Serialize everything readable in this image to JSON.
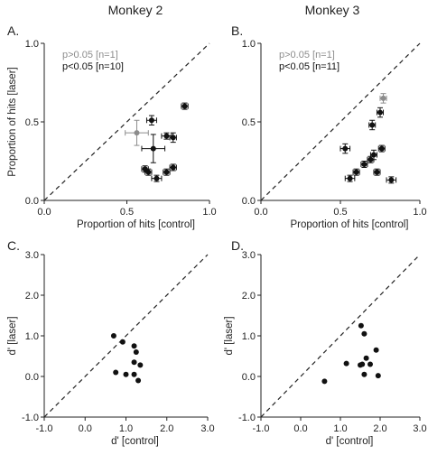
{
  "colors": {
    "black": "#111111",
    "gray": "#8c8c8c"
  },
  "column_titles": [
    "Monkey 2",
    "Monkey 3"
  ],
  "chart_data": [
    {
      "panel_label": "A.",
      "type": "scatter",
      "title": "Monkey 2",
      "xlabel": "Proportion of hits [control]",
      "ylabel": "Proportion of hits [laser]",
      "xlim": [
        0,
        1
      ],
      "ylim": [
        0,
        1
      ],
      "xticks": [
        0,
        0.5,
        1
      ],
      "yticks": [
        0,
        0.5,
        1
      ],
      "xtick_labels": [
        "0.0",
        "0.5",
        "1.0"
      ],
      "ytick_labels": [
        "0.0",
        "0.5",
        "1.0"
      ],
      "unity_line": true,
      "legend": [
        {
          "text": "p>0.05 [n=1]",
          "color": "#8c8c8c"
        },
        {
          "text": "p<0.05 [n=10]",
          "color": "#111111"
        }
      ],
      "series": [
        {
          "color": "#111111",
          "points": [
            {
              "x": 0.85,
              "y": 0.6,
              "xerr": 0.02,
              "yerr": 0.02
            },
            {
              "x": 0.65,
              "y": 0.51,
              "xerr": 0.03,
              "yerr": 0.03
            },
            {
              "x": 0.74,
              "y": 0.41,
              "xerr": 0.03,
              "yerr": 0.02
            },
            {
              "x": 0.78,
              "y": 0.4,
              "xerr": 0.02,
              "yerr": 0.03
            },
            {
              "x": 0.66,
              "y": 0.33,
              "xerr": 0.07,
              "yerr": 0.09
            },
            {
              "x": 0.61,
              "y": 0.2,
              "xerr": 0.02,
              "yerr": 0.02
            },
            {
              "x": 0.63,
              "y": 0.18,
              "xerr": 0.02,
              "yerr": 0.02
            },
            {
              "x": 0.74,
              "y": 0.18,
              "xerr": 0.02,
              "yerr": 0.02
            },
            {
              "x": 0.78,
              "y": 0.21,
              "xerr": 0.02,
              "yerr": 0.02
            },
            {
              "x": 0.68,
              "y": 0.14,
              "xerr": 0.03,
              "yerr": 0.02
            }
          ]
        },
        {
          "color": "#8c8c8c",
          "points": [
            {
              "x": 0.56,
              "y": 0.43,
              "xerr": 0.07,
              "yerr": 0.08
            }
          ]
        }
      ]
    },
    {
      "panel_label": "B.",
      "type": "scatter",
      "title": "Monkey 3",
      "xlabel": "Proportion of hits [control]",
      "ylabel": "",
      "xlim": [
        0,
        1
      ],
      "ylim": [
        0,
        1
      ],
      "xticks": [
        0,
        0.5,
        1
      ],
      "yticks": [
        0,
        0.5,
        1
      ],
      "xtick_labels": [
        "0.0",
        "0.5",
        "1.0"
      ],
      "ytick_labels": [
        "0.0",
        "0.5",
        "1.0"
      ],
      "unity_line": true,
      "legend": [
        {
          "text": "p>0.05 [n=1]",
          "color": "#8c8c8c"
        },
        {
          "text": "p<0.05 [n=11]",
          "color": "#111111"
        }
      ],
      "series": [
        {
          "color": "#111111",
          "points": [
            {
              "x": 0.75,
              "y": 0.56,
              "xerr": 0.02,
              "yerr": 0.03
            },
            {
              "x": 0.7,
              "y": 0.48,
              "xerr": 0.02,
              "yerr": 0.03
            },
            {
              "x": 0.53,
              "y": 0.33,
              "xerr": 0.03,
              "yerr": 0.03
            },
            {
              "x": 0.76,
              "y": 0.33,
              "xerr": 0.02,
              "yerr": 0.02
            },
            {
              "x": 0.71,
              "y": 0.29,
              "xerr": 0.02,
              "yerr": 0.03
            },
            {
              "x": 0.69,
              "y": 0.26,
              "xerr": 0.02,
              "yerr": 0.02
            },
            {
              "x": 0.65,
              "y": 0.23,
              "xerr": 0.02,
              "yerr": 0.02
            },
            {
              "x": 0.6,
              "y": 0.18,
              "xerr": 0.02,
              "yerr": 0.02
            },
            {
              "x": 0.73,
              "y": 0.18,
              "xerr": 0.02,
              "yerr": 0.02
            },
            {
              "x": 0.56,
              "y": 0.14,
              "xerr": 0.03,
              "yerr": 0.02
            },
            {
              "x": 0.82,
              "y": 0.13,
              "xerr": 0.03,
              "yerr": 0.02
            }
          ]
        },
        {
          "color": "#8c8c8c",
          "points": [
            {
              "x": 0.77,
              "y": 0.65,
              "xerr": 0.02,
              "yerr": 0.03
            }
          ]
        }
      ]
    },
    {
      "panel_label": "C.",
      "type": "scatter",
      "title": "",
      "xlabel": "d' [control]",
      "ylabel": "d' [laser]",
      "xlim": [
        -1,
        3
      ],
      "ylim": [
        -1,
        3
      ],
      "xticks": [
        -1,
        0,
        1,
        2,
        3
      ],
      "yticks": [
        -1,
        0,
        1,
        2,
        3
      ],
      "xtick_labels": [
        "-1.0",
        "0.0",
        "1.0",
        "2.0",
        "3.0"
      ],
      "ytick_labels": [
        "-1.0",
        "0.0",
        "1.0",
        "2.0",
        "3.0"
      ],
      "unity_line": true,
      "legend": [],
      "series": [
        {
          "color": "#111111",
          "points": [
            {
              "x": 0.7,
              "y": 1.0
            },
            {
              "x": 0.92,
              "y": 0.85
            },
            {
              "x": 0.75,
              "y": 0.1
            },
            {
              "x": 1.0,
              "y": 0.05
            },
            {
              "x": 1.2,
              "y": 0.75
            },
            {
              "x": 1.25,
              "y": 0.6
            },
            {
              "x": 1.2,
              "y": 0.35
            },
            {
              "x": 1.35,
              "y": 0.28
            },
            {
              "x": 1.2,
              "y": 0.05
            },
            {
              "x": 1.3,
              "y": -0.1
            }
          ]
        }
      ]
    },
    {
      "panel_label": "D.",
      "type": "scatter",
      "title": "",
      "xlabel": "d' [control]",
      "ylabel": "d' [laser]",
      "xlim": [
        -1,
        3
      ],
      "ylim": [
        -1,
        3
      ],
      "xticks": [
        -1,
        0,
        1,
        2,
        3
      ],
      "yticks": [
        -1,
        0,
        1,
        2,
        3
      ],
      "xtick_labels": [
        "-1.0",
        "0.0",
        "1.0",
        "2.0",
        "3.0"
      ],
      "ytick_labels": [
        "-1.0",
        "0.0",
        "1.0",
        "2.0",
        "3.0"
      ],
      "unity_line": true,
      "legend": [],
      "series": [
        {
          "color": "#111111",
          "points": [
            {
              "x": 0.6,
              "y": -0.12
            },
            {
              "x": 1.15,
              "y": 0.32
            },
            {
              "x": 1.5,
              "y": 0.28
            },
            {
              "x": 1.52,
              "y": 1.25
            },
            {
              "x": 1.6,
              "y": 1.05
            },
            {
              "x": 1.65,
              "y": 0.45
            },
            {
              "x": 1.6,
              "y": 0.05
            },
            {
              "x": 1.75,
              "y": 0.3
            },
            {
              "x": 1.9,
              "y": 0.65
            },
            {
              "x": 1.95,
              "y": 0.02
            },
            {
              "x": 1.55,
              "y": 0.3
            }
          ]
        }
      ]
    }
  ]
}
